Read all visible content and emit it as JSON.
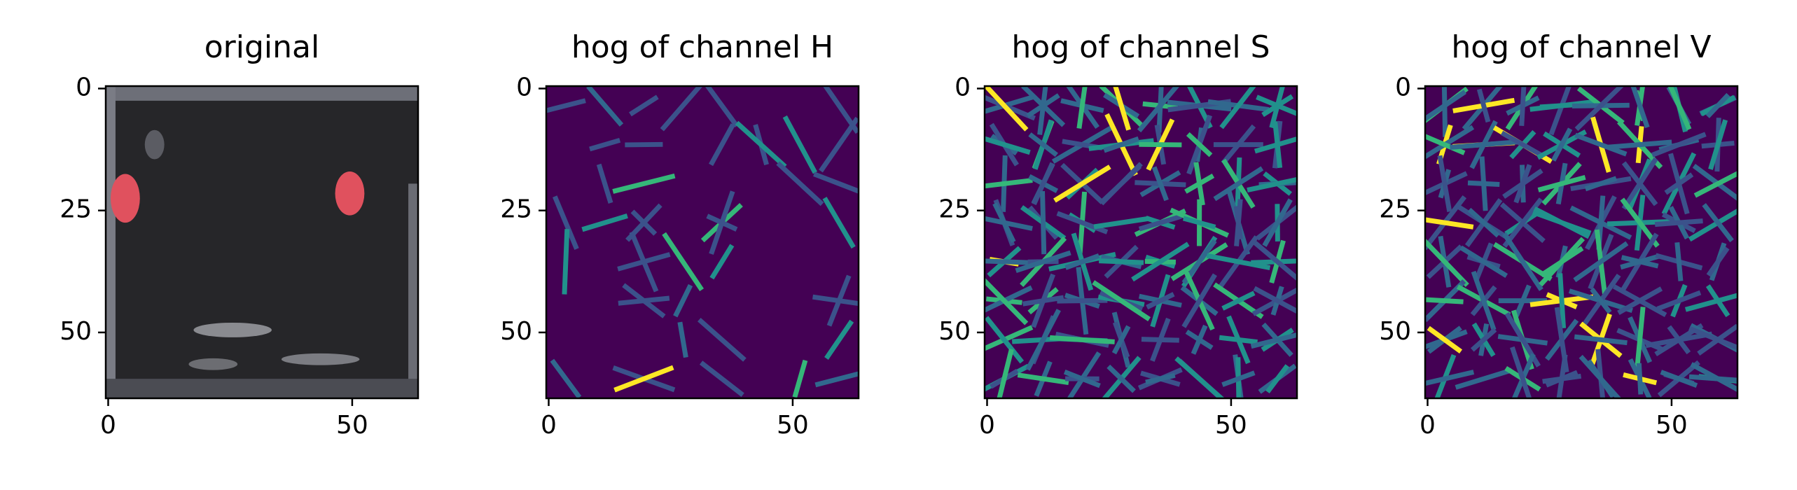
{
  "chart_data": [
    {
      "type": "image",
      "title": "original",
      "xlim": [
        -0.5,
        63.5
      ],
      "ylim": [
        63.5,
        -0.5
      ],
      "xticks": [
        0,
        50
      ],
      "yticks": [
        0,
        25,
        50
      ]
    },
    {
      "type": "image",
      "title": "hog of channel H",
      "xlim": [
        -0.5,
        63.5
      ],
      "ylim": [
        63.5,
        -0.5
      ],
      "xticks": [
        0,
        50
      ],
      "yticks": [
        0,
        25,
        50
      ]
    },
    {
      "type": "image",
      "title": "hog of channel S",
      "xlim": [
        -0.5,
        63.5
      ],
      "ylim": [
        63.5,
        -0.5
      ],
      "xticks": [
        0,
        50
      ],
      "yticks": [
        0,
        25,
        50
      ]
    },
    {
      "type": "image",
      "title": "hog of channel V",
      "xlim": [
        -0.5,
        63.5
      ],
      "ylim": [
        63.5,
        -0.5
      ],
      "xticks": [
        0,
        50
      ],
      "yticks": [
        0,
        25,
        50
      ]
    }
  ]
}
